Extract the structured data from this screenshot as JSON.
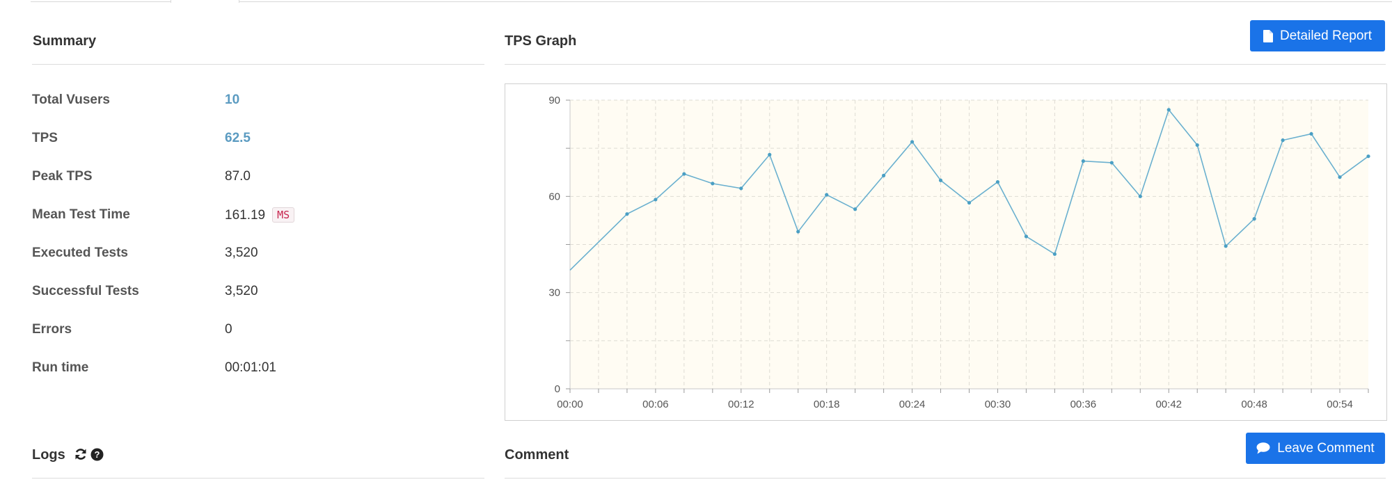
{
  "summary": {
    "title": "Summary",
    "rows": [
      {
        "label": "Total Vusers",
        "value": "10",
        "accent": true
      },
      {
        "label": "TPS",
        "value": "62.5",
        "accent": true
      },
      {
        "label": "Peak TPS",
        "value": "87.0",
        "accent": false
      },
      {
        "label": "Mean Test Time",
        "value": "161.19",
        "unit": "MS",
        "accent": false
      },
      {
        "label": "Executed Tests",
        "value": "3,520",
        "accent": false
      },
      {
        "label": "Successful Tests",
        "value": "3,520",
        "accent": false
      },
      {
        "label": "Errors",
        "value": "0",
        "accent": false
      },
      {
        "label": "Run time",
        "value": "00:01:01",
        "accent": false
      }
    ]
  },
  "tps_graph": {
    "title": "TPS Graph",
    "detailed_report_label": "Detailed Report"
  },
  "logs": {
    "title": "Logs",
    "refresh_icon": "refresh-icon",
    "help_icon": "question-circle-icon"
  },
  "comment": {
    "title": "Comment",
    "leave_comment_label": "Leave Comment"
  },
  "colors": {
    "accent_value": "#5b9bc1",
    "button_blue": "#1a73e8",
    "line": "#6ab0cf",
    "plot_bg": "#fffcf3"
  },
  "chart_data": {
    "type": "line",
    "title": "",
    "xlabel": "",
    "ylabel": "",
    "ylim": [
      0,
      90
    ],
    "y_ticks": [
      "0",
      "30",
      "60",
      "90"
    ],
    "x_ticks": [
      "00:00",
      "00:06",
      "00:12",
      "00:18",
      "00:24",
      "00:30",
      "00:36",
      "00:42",
      "00:48",
      "00:54"
    ],
    "grid": true,
    "x": [
      0,
      4,
      6,
      8,
      10,
      12,
      14,
      16,
      18,
      20,
      22,
      24,
      26,
      28,
      30,
      32,
      34,
      36,
      38,
      40,
      42,
      44,
      46,
      48,
      50,
      52,
      54,
      56
    ],
    "values": [
      37,
      54.5,
      59,
      67,
      64,
      62.5,
      73,
      49,
      60.5,
      56,
      66.5,
      77,
      65,
      58,
      64.5,
      47.5,
      42,
      71,
      70.5,
      60,
      87,
      76,
      44.5,
      53,
      77.5,
      79.5,
      66,
      72.5
    ],
    "xlim": [
      0,
      56
    ]
  }
}
